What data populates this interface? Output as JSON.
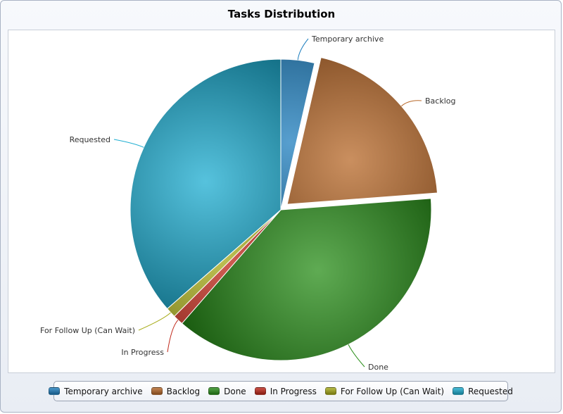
{
  "chart_data": {
    "type": "pie",
    "title": "Tasks Distribution",
    "slices": [
      {
        "label": "Temporary archive",
        "value": 3.6,
        "color": "#1f7fbf",
        "exploded": false
      },
      {
        "label": "Backlog",
        "value": 20.2,
        "color": "#b8692a",
        "exploded": true
      },
      {
        "label": "Done",
        "value": 37.6,
        "color": "#2a8f1a",
        "exploded": false
      },
      {
        "label": "In Progress",
        "value": 1.1,
        "color": "#c0281a",
        "exploded": false
      },
      {
        "label": "For Follow Up (Can Wait)",
        "value": 1.1,
        "color": "#a8ac1a",
        "exploded": false
      },
      {
        "label": "Requested",
        "value": 36.4,
        "color": "#1eaed1",
        "exploded": false
      }
    ],
    "legend": "bottom"
  }
}
